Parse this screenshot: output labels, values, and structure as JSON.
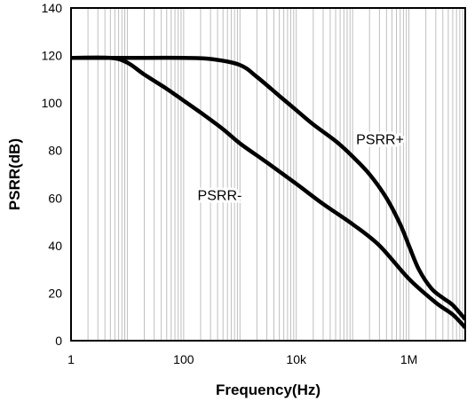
{
  "chart_data": {
    "type": "line",
    "xlabel": "Frequency(Hz)",
    "ylabel": "PSRR(dB)",
    "x_scale": "log",
    "xlim": [
      1,
      10000000
    ],
    "ylim": [
      0,
      140
    ],
    "grid": "vertical minor log lines",
    "x_ticks": [
      {
        "value": 1,
        "label": "1"
      },
      {
        "value": 100,
        "label": "100"
      },
      {
        "value": 10000,
        "label": "10k"
      },
      {
        "value": 1000000,
        "label": "1M"
      }
    ],
    "y_ticks": [
      0,
      20,
      40,
      60,
      80,
      100,
      120,
      140
    ],
    "series": [
      {
        "name": "PSRR+",
        "color": "#000000",
        "points": [
          [
            1,
            119
          ],
          [
            10,
            119
          ],
          [
            100,
            119
          ],
          [
            316,
            118.5
          ],
          [
            1000,
            116
          ],
          [
            2000,
            111
          ],
          [
            5000,
            103
          ],
          [
            10000,
            97
          ],
          [
            20000,
            91
          ],
          [
            50000,
            84
          ],
          [
            100000,
            77.5
          ],
          [
            200000,
            70
          ],
          [
            400000,
            60
          ],
          [
            700000,
            49
          ],
          [
            1000000,
            40
          ],
          [
            1500000,
            30
          ],
          [
            2500000,
            22
          ],
          [
            4000000,
            18
          ],
          [
            6000000,
            15
          ],
          [
            10000000,
            9
          ]
        ]
      },
      {
        "name": "PSRR-",
        "color": "#000000",
        "points": [
          [
            1,
            119
          ],
          [
            5,
            119
          ],
          [
            10,
            117
          ],
          [
            20,
            112
          ],
          [
            50,
            106
          ],
          [
            100,
            101
          ],
          [
            200,
            96
          ],
          [
            500,
            89
          ],
          [
            1000,
            83
          ],
          [
            3000,
            75
          ],
          [
            10000,
            66
          ],
          [
            30000,
            57.5
          ],
          [
            100000,
            49
          ],
          [
            300000,
            40
          ],
          [
            1000000,
            26
          ],
          [
            3000000,
            16
          ],
          [
            6000000,
            11
          ],
          [
            10000000,
            5.5
          ]
        ]
      }
    ],
    "annotations": [
      {
        "text": "PSRR+",
        "series": "PSRR+",
        "position": "right of curve near 100k"
      },
      {
        "text": "PSRR-",
        "series": "PSRR-",
        "position": "left of curve near 3k"
      }
    ]
  }
}
